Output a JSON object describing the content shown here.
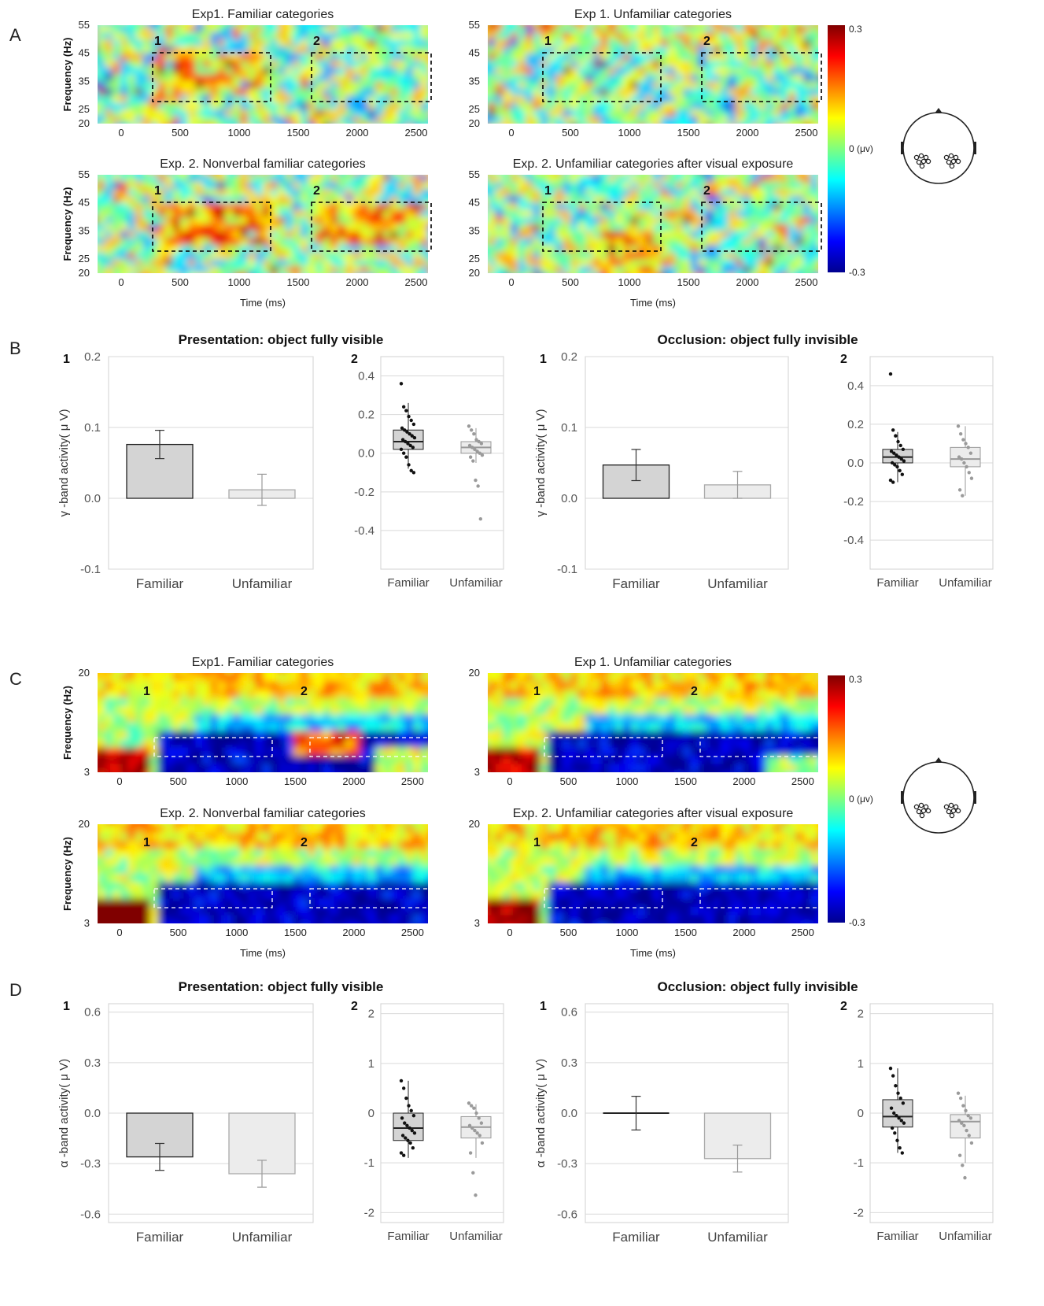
{
  "panel_letters": [
    "A",
    "B",
    "C",
    "D"
  ],
  "colorbar": {
    "max_label": "0.3",
    "zero_label": "0 (μv)",
    "min_label": "-0.3"
  },
  "chart_data": [
    {
      "type": "heatmap",
      "panel": "A",
      "band": "gamma",
      "xlabel": "Time (ms)",
      "ylabel": "Frequency (Hz)",
      "x_ticks": [
        0,
        500,
        1000,
        1500,
        2000,
        2500
      ],
      "y_ticks": [
        20,
        25,
        35,
        45,
        55
      ],
      "windows": [
        {
          "label": "1",
          "time": [
            300,
            1300
          ],
          "freq": [
            25,
            45
          ]
        },
        {
          "label": "2",
          "time": [
            1650,
            2650
          ],
          "freq": [
            25,
            45
          ]
        }
      ],
      "subplots": [
        {
          "title": "Exp1. Familiar categories"
        },
        {
          "title": "Exp 1. Unfamiliar categories"
        },
        {
          "title": "Exp. 2. Nonverbal familiar categories"
        },
        {
          "title": "Exp. 2. Unfamiliar categories after visual exposure"
        }
      ]
    },
    {
      "type": "bar",
      "panel": "B",
      "window": "1",
      "title": "Presentation: object fully visible",
      "ylabel": "γ -band activity( μ V)",
      "categories": [
        "Familiar",
        "Unfamiliar"
      ],
      "values": [
        0.076,
        0.012
      ],
      "errors": [
        0.02,
        0.022
      ],
      "ylim": [
        -0.1,
        0.2
      ],
      "yticks": [
        "-0.1",
        "0.0",
        "0.1",
        "0.2"
      ]
    },
    {
      "type": "box",
      "panel": "B",
      "window": "2",
      "categories": [
        "Familiar",
        "Unfamiliar"
      ],
      "ylim": [
        -0.6,
        0.5
      ],
      "yticks": [
        "-0.4",
        "-0.2",
        "0.0",
        "0.2",
        "0.4"
      ],
      "boxes": [
        {
          "q1": 0.02,
          "median": 0.06,
          "q3": 0.12,
          "low": -0.08,
          "high": 0.26,
          "points": [
            0.36,
            0.24,
            0.22,
            0.19,
            0.17,
            0.15,
            0.13,
            0.12,
            0.11,
            0.1,
            0.09,
            0.08,
            0.07,
            0.06,
            0.05,
            0.04,
            0.03,
            0.02,
            0.0,
            -0.02,
            -0.06,
            -0.09,
            -0.1
          ]
        },
        {
          "q1": 0.0,
          "median": 0.03,
          "q3": 0.06,
          "low": -0.05,
          "high": 0.13,
          "points": [
            0.14,
            0.12,
            0.1,
            0.07,
            0.06,
            0.05,
            0.04,
            0.03,
            0.02,
            0.01,
            0.0,
            -0.01,
            -0.02,
            -0.04,
            -0.14,
            -0.17,
            -0.34
          ]
        }
      ]
    },
    {
      "type": "bar",
      "panel": "B",
      "window": "1",
      "title": "Occlusion: object fully invisible",
      "ylabel": "γ -band activity( μ V)",
      "categories": [
        "Familiar",
        "Unfamiliar"
      ],
      "values": [
        0.047,
        0.019
      ],
      "errors": [
        0.022,
        0.019
      ],
      "ylim": [
        -0.1,
        0.2
      ],
      "yticks": [
        "-0.1",
        "0.0",
        "0.1",
        "0.2"
      ]
    },
    {
      "type": "box",
      "panel": "B",
      "window": "2",
      "categories": [
        "Familiar",
        "Unfamiliar"
      ],
      "ylim": [
        -0.55,
        0.55
      ],
      "yticks": [
        "-0.4",
        "-0.2",
        "0.0",
        "0.2",
        "0.4"
      ],
      "boxes": [
        {
          "q1": 0.0,
          "median": 0.03,
          "q3": 0.07,
          "low": -0.1,
          "high": 0.16,
          "points": [
            0.46,
            0.17,
            0.14,
            0.11,
            0.09,
            0.07,
            0.06,
            0.05,
            0.04,
            0.03,
            0.02,
            0.01,
            0.0,
            -0.01,
            -0.02,
            -0.04,
            -0.06,
            -0.09,
            -0.1
          ]
        },
        {
          "q1": -0.02,
          "median": 0.02,
          "q3": 0.08,
          "low": -0.17,
          "high": 0.19,
          "points": [
            0.19,
            0.15,
            0.12,
            0.1,
            0.08,
            0.05,
            0.03,
            0.02,
            0.0,
            -0.02,
            -0.05,
            -0.08,
            -0.14,
            -0.17
          ]
        }
      ]
    },
    {
      "type": "heatmap",
      "panel": "C",
      "band": "alpha",
      "xlabel": "Time (ms)",
      "ylabel": "Frequency (Hz)",
      "x_ticks": [
        0,
        500,
        1000,
        1500,
        2000,
        2500
      ],
      "y_ticks": [
        3,
        20
      ],
      "windows": [
        {
          "label": "1"
        },
        {
          "label": "2"
        }
      ],
      "subplots": [
        {
          "title": "Exp1. Familiar categories"
        },
        {
          "title": "Exp 1. Unfamiliar categories"
        },
        {
          "title": "Exp. 2. Nonverbal familiar categories"
        },
        {
          "title": "Exp. 2. Unfamiliar categories after visual exposure"
        }
      ]
    },
    {
      "type": "bar",
      "panel": "D",
      "window": "1",
      "title": "Presentation: object fully visible",
      "ylabel": "α -band activity( μ V)",
      "categories": [
        "Familiar",
        "Unfamiliar"
      ],
      "values": [
        -0.26,
        -0.36
      ],
      "errors": [
        0.08,
        0.08
      ],
      "ylim": [
        -0.65,
        0.65
      ],
      "yticks": [
        "-0.6",
        "-0.3",
        "0.0",
        "0.3",
        "0.6"
      ]
    },
    {
      "type": "box",
      "panel": "D",
      "window": "2",
      "categories": [
        "Familiar",
        "Unfamiliar"
      ],
      "ylim": [
        -2.2,
        2.2
      ],
      "yticks": [
        "-2",
        "-1",
        "0",
        "1",
        "2"
      ],
      "boxes": [
        {
          "q1": -0.55,
          "median": -0.3,
          "q3": 0.0,
          "low": -0.9,
          "high": 0.65,
          "points": [
            0.65,
            0.5,
            0.3,
            0.15,
            0.05,
            -0.05,
            -0.1,
            -0.2,
            -0.25,
            -0.3,
            -0.35,
            -0.4,
            -0.45,
            -0.5,
            -0.55,
            -0.6,
            -0.7,
            -0.8,
            -0.85
          ]
        },
        {
          "q1": -0.5,
          "median": -0.28,
          "q3": -0.07,
          "low": -0.9,
          "high": 0.18,
          "points": [
            0.2,
            0.15,
            0.1,
            0.0,
            -0.1,
            -0.2,
            -0.25,
            -0.3,
            -0.35,
            -0.4,
            -0.45,
            -0.6,
            -0.8,
            -1.2,
            -1.65
          ]
        }
      ]
    },
    {
      "type": "bar",
      "panel": "D",
      "window": "1",
      "title": "Occlusion: object fully invisible",
      "ylabel": "α -band activity( μ V)",
      "categories": [
        "Familiar",
        "Unfamiliar"
      ],
      "values": [
        0.0,
        -0.27
      ],
      "errors": [
        0.1,
        0.08
      ],
      "ylim": [
        -0.65,
        0.65
      ],
      "yticks": [
        "-0.6",
        "-0.3",
        "0.0",
        "0.3",
        "0.6"
      ]
    },
    {
      "type": "box",
      "panel": "D",
      "window": "2",
      "categories": [
        "Familiar",
        "Unfamiliar"
      ],
      "ylim": [
        -2.2,
        2.2
      ],
      "yticks": [
        "-2",
        "-1",
        "0",
        "1",
        "2"
      ],
      "boxes": [
        {
          "q1": -0.28,
          "median": -0.07,
          "q3": 0.27,
          "low": -0.8,
          "high": 0.9,
          "points": [
            0.9,
            0.75,
            0.55,
            0.4,
            0.3,
            0.2,
            0.1,
            0.0,
            -0.05,
            -0.1,
            -0.15,
            -0.2,
            -0.3,
            -0.4,
            -0.55,
            -0.7,
            -0.8
          ]
        },
        {
          "q1": -0.5,
          "median": -0.17,
          "q3": -0.03,
          "low": -1.0,
          "high": 0.35,
          "points": [
            0.4,
            0.3,
            0.15,
            0.05,
            -0.05,
            -0.1,
            -0.15,
            -0.2,
            -0.25,
            -0.35,
            -0.45,
            -0.6,
            -0.85,
            -1.05,
            -1.3
          ]
        }
      ]
    }
  ]
}
